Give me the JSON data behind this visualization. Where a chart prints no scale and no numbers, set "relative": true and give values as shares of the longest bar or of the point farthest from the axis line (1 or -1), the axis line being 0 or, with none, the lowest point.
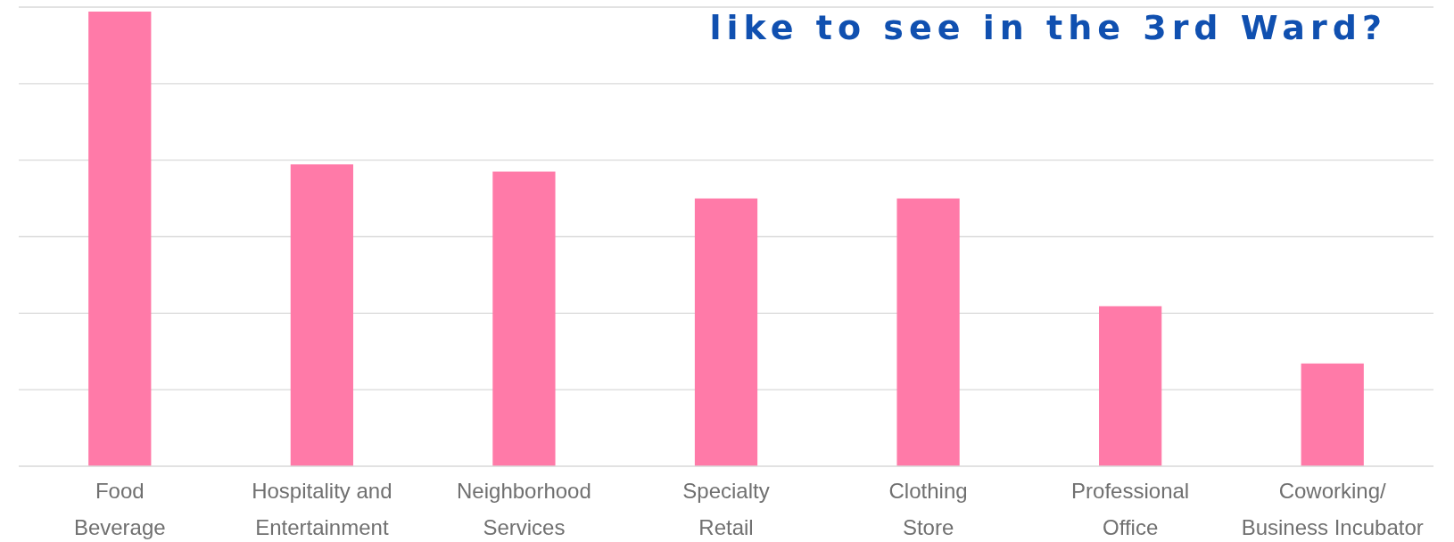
{
  "chart_data": {
    "type": "bar",
    "title": "like to see in the 3rd Ward?",
    "categories": [
      "Food Beverage",
      "Hospitality and Entertainment",
      "Neighborhood Services",
      "Specialty Retail",
      "Clothing Store",
      "Professional Office",
      "Coworking/ Business Incubator"
    ],
    "values": [
      1,
      0.664,
      0.648,
      0.589,
      0.589,
      0.352,
      0.226
    ],
    "color": "#ff7aa8",
    "relative": true,
    "grid": true
  }
}
